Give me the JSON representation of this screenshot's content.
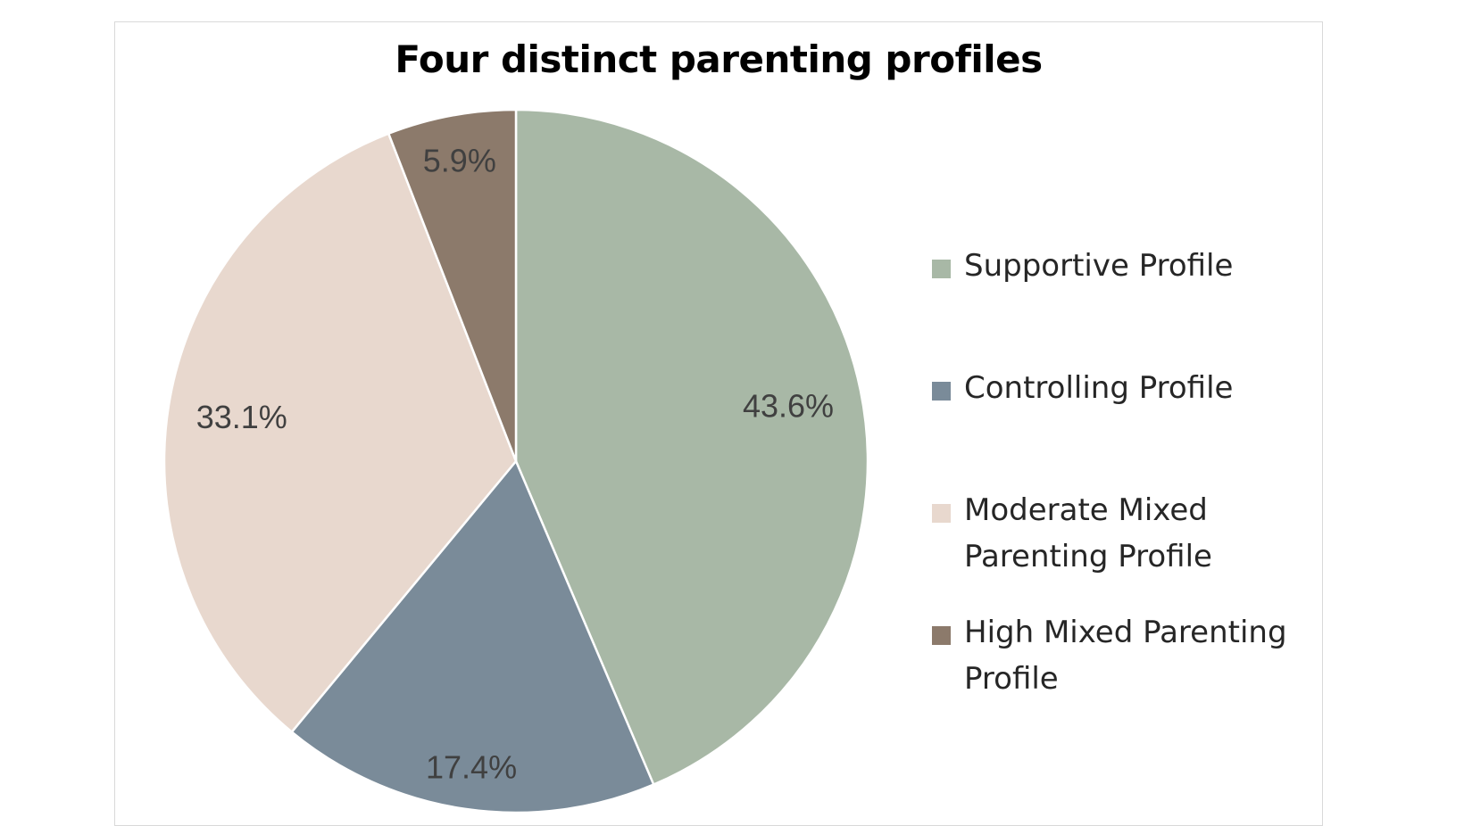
{
  "chart_data": {
    "type": "pie",
    "title": "Four distinct parenting profiles",
    "categories": [
      "Supportive Profile",
      "Controlling Profile",
      "Moderate Mixed Parenting Profile",
      "High Mixed Parenting Profile"
    ],
    "values": [
      43.6,
      17.4,
      33.1,
      5.9
    ],
    "data_labels": [
      "43.6%",
      "17.4%",
      "33.1%",
      "5.9%"
    ],
    "colors": [
      "#a8b8a6",
      "#7a8b99",
      "#e8d8ce",
      "#8c7a6b"
    ],
    "start_angle": "12 o'clock",
    "direction": "clockwise",
    "legend": {
      "position": "right",
      "items": [
        {
          "label": "Supportive Profile",
          "color": "#a8b8a6"
        },
        {
          "label": "Controlling Profile",
          "color": "#7a8b99"
        },
        {
          "label": "Moderate Mixed Parenting Profile",
          "color": "#e8d8ce"
        },
        {
          "label": "High Mixed Parenting Profile",
          "color": "#8c7a6b"
        }
      ]
    }
  }
}
